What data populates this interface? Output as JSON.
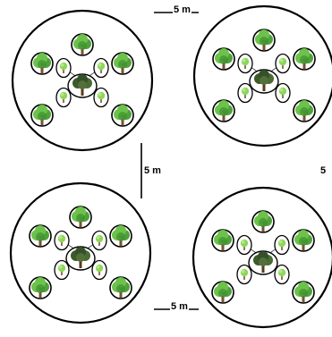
{
  "labels": {
    "top_spacing": "5 m",
    "middle_spacing": "5 m",
    "right_spacing": "5",
    "bottom_spacing": "5 m"
  },
  "colors": {
    "outline": "#000000",
    "leaf": "#6cc24a",
    "leaf_dark": "#2e7d32",
    "trunk": "#7a5230",
    "mother_canopy": "#3c5a2a"
  },
  "icons": {
    "outer_tree": "deciduous-tree-icon",
    "inner_seedling": "seedling-icon",
    "central_tree": "mother-tree-icon"
  }
}
